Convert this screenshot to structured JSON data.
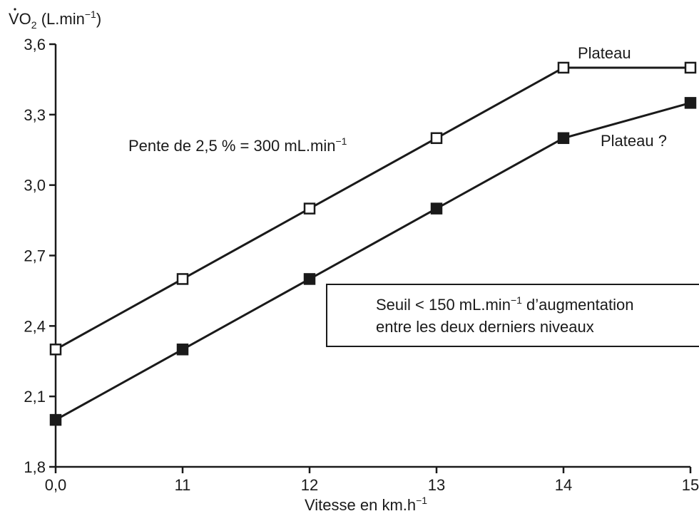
{
  "chart_data": {
    "type": "line",
    "title": "",
    "ylabel": {
      "main": "VO",
      "sub": "2",
      "unit": " (L.min",
      "exp": "−1",
      "close": ")"
    },
    "xlabel": {
      "main": "Vitesse en km.h",
      "exp": "−1"
    },
    "categories": [
      "0,0",
      "11",
      "12",
      "13",
      "14",
      "15"
    ],
    "ylim": [
      1.8,
      3.6
    ],
    "yticks": [
      1.8,
      2.1,
      2.4,
      2.7,
      3.0,
      3.3,
      3.6
    ],
    "ytick_labels": [
      "1,8",
      "2,1",
      "2,4",
      "2,7",
      "3,0",
      "3,3",
      "3,6"
    ],
    "grid": false,
    "series": [
      {
        "marker": "open-square",
        "values": [
          2.3,
          2.6,
          2.9,
          3.2,
          3.5,
          3.5
        ]
      },
      {
        "marker": "filled-square",
        "values": [
          2.0,
          2.3,
          2.6,
          2.9,
          3.2,
          3.35
        ]
      }
    ],
    "annotations": {
      "plateau": "Plateau",
      "plateau_question": "Plateau ?",
      "slope": {
        "main": "Pente de 2,5 % = 300 mL.min",
        "exp": "−1"
      },
      "box_line1": {
        "main": "Seuil < 150 mL.min",
        "exp": "−1",
        "rest": " d’augmentation"
      },
      "box_line2": "entre les deux derniers niveaux"
    }
  }
}
